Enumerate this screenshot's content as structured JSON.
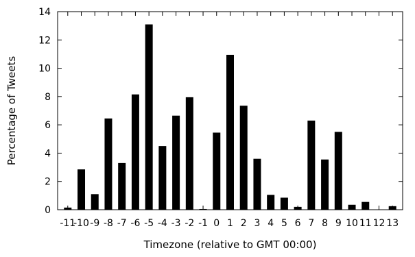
{
  "chart_data": {
    "type": "bar",
    "title": "",
    "xlabel": "Timezone (relative to GMT 00:00)",
    "ylabel": "Percentage of Tweets",
    "ylim": [
      0,
      14
    ],
    "yticks": [
      0,
      2,
      4,
      6,
      8,
      10,
      12,
      14
    ],
    "grid": false,
    "legend": "none",
    "bar_color": "#000000",
    "categories": [
      "-11",
      "-10",
      "-9",
      "-8",
      "-7",
      "-6",
      "-5",
      "-4",
      "-3",
      "-2",
      "-1",
      "0",
      "1",
      "2",
      "3",
      "4",
      "5",
      "6",
      "7",
      "8",
      "9",
      "10",
      "11",
      "12",
      "13"
    ],
    "values": [
      0.15,
      2.85,
      1.1,
      6.45,
      3.3,
      8.15,
      13.1,
      4.5,
      6.65,
      7.95,
      0.05,
      5.45,
      10.95,
      7.35,
      3.6,
      1.05,
      0.85,
      0.2,
      6.3,
      3.55,
      5.5,
      0.35,
      0.55,
      0.0,
      0.25
    ]
  }
}
